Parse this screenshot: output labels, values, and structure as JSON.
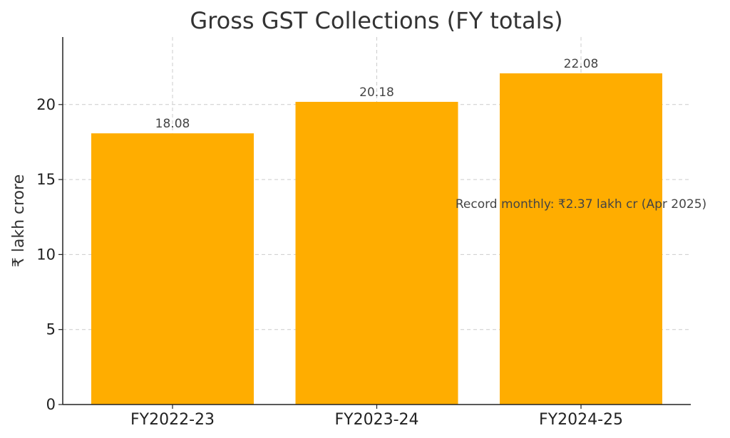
{
  "chart_data": {
    "type": "bar",
    "title": "Gross GST Collections (FY totals)",
    "xlabel": "",
    "ylabel": "₹ lakh crore",
    "categories": [
      "FY2022-23",
      "FY2023-24",
      "FY2024-25"
    ],
    "values": [
      18.08,
      20.18,
      22.08
    ],
    "data_labels": [
      "18.08",
      "20.18",
      "22.08"
    ],
    "ylim": [
      0,
      24.5
    ],
    "yticks": [
      0,
      5,
      10,
      15,
      20
    ],
    "grid": true,
    "bar_color": "#FFAD00",
    "annotation": {
      "text": "Record monthly: ₹2.37 lakh cr (Apr 2025)",
      "x_category": "FY2024-25",
      "y": 13.4
    }
  }
}
